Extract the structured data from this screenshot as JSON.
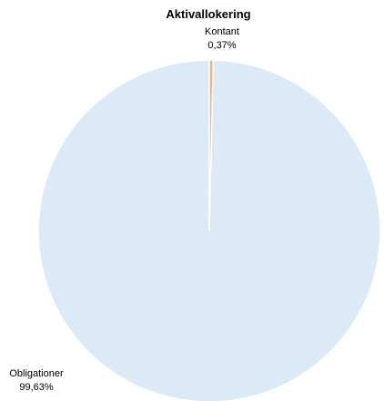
{
  "chart_data": {
    "type": "pie",
    "title": "Aktivallokering",
    "slices": [
      {
        "label": "Obligationer",
        "display_value": "99,63%",
        "value": 99.63,
        "color": "#dce9f6"
      },
      {
        "label": "Kontant",
        "display_value": "0,37%",
        "value": 0.37,
        "color": "#f4b183"
      }
    ],
    "start": "12 o'clock",
    "direction": "counter-clockwise",
    "slice_border_color": "#ffffff"
  }
}
